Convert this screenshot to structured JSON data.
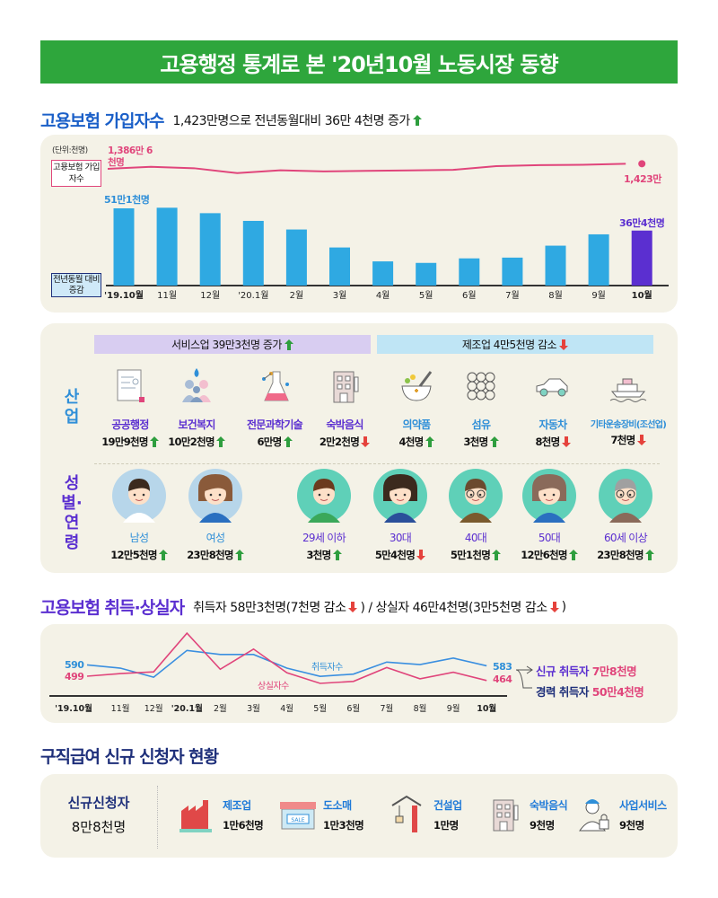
{
  "banner": {
    "title": "고용행정 통계로 본 '20년10월 노동시장 동향",
    "color": "#2ea63c"
  },
  "colors": {
    "up": "#2e9e3e",
    "down": "#e5423c",
    "pink": "#e0457b",
    "blue": "#2f9fe0",
    "purple": "#5b2fd0",
    "navy": "#1e2f7a"
  },
  "section1": {
    "title": "고용보험 가입자수",
    "summary": "1,423만명으로 전년동월대비 36만 4천명 증가",
    "summary_arrow": "up",
    "unit": "(단위:천명)",
    "line_legend": "고용보험 가입자수",
    "bar_legend": "전년동월 대비 증감",
    "line_start_label": "1,386만 6천명",
    "line_end_label": "1,423만",
    "bar_first_label": "51만1천명",
    "bar_last_label": "36만4천명"
  },
  "section2": {
    "industry_label": "산업",
    "demo_label": "성별·연령",
    "service_header": "서비스업 39만3천명 증가",
    "service_arrow": "up",
    "manufacturing_header": "제조업 4만5천명 감소",
    "manufacturing_arrow": "down",
    "industries": [
      {
        "name": "공공행정",
        "value": "19만9천명",
        "arrow": "up",
        "icon": "document-icon"
      },
      {
        "name": "보건복지",
        "value": "10만2천명",
        "arrow": "up",
        "icon": "people-care-icon"
      },
      {
        "name": "전문과학기술",
        "value": "6만명",
        "arrow": "up",
        "icon": "flask-icon"
      },
      {
        "name": "숙박음식",
        "value": "2만2천명",
        "arrow": "down",
        "icon": "hotel-icon"
      },
      {
        "name": "의약품",
        "value": "4천명",
        "arrow": "up",
        "icon": "mortar-pestle-icon"
      },
      {
        "name": "섬유",
        "value": "3천명",
        "arrow": "up",
        "icon": "fabric-icon"
      },
      {
        "name": "자동차",
        "value": "8천명",
        "arrow": "down",
        "icon": "car-icon"
      },
      {
        "name": "기타운송장비(조선업)",
        "value": "7천명",
        "arrow": "down",
        "icon": "ship-icon"
      }
    ],
    "demographics": [
      {
        "name": "남성",
        "value": "12만5천명",
        "arrow": "up",
        "icon": "man-avatar-icon"
      },
      {
        "name": "여성",
        "value": "23만8천명",
        "arrow": "up",
        "icon": "woman-avatar-icon"
      },
      {
        "name": "29세 이하",
        "value": "3천명",
        "arrow": "up",
        "icon": "young-man-avatar-icon"
      },
      {
        "name": "30대",
        "value": "5만4천명",
        "arrow": "down",
        "icon": "young-woman-avatar-icon"
      },
      {
        "name": "40대",
        "value": "5만1천명",
        "arrow": "up",
        "icon": "glasses-man-avatar-icon"
      },
      {
        "name": "50대",
        "value": "12만6천명",
        "arrow": "up",
        "icon": "middle-aged-woman-avatar-icon"
      },
      {
        "name": "60세 이상",
        "value": "23만8천명",
        "arrow": "up",
        "icon": "elderly-avatar-icon"
      }
    ]
  },
  "section3": {
    "title": "고용보험 취득·상실자",
    "summary_a": "취득자 58만3천명(7천명 감소",
    "summary_a_arrow": "down",
    "summary_b": ") / 상실자 46만4천명(3만5천명 감소",
    "summary_b_arrow": "down",
    "summary_end": ")",
    "acq_label": "취득자수",
    "loss_label": "상실자수",
    "acq_first": "590",
    "acq_last": "583",
    "loss_first": "499",
    "loss_last": "464",
    "new_label": "신규 취득자",
    "new_value": "7만8천명",
    "career_label": "경력 취득자",
    "career_value": "50만4천명"
  },
  "section4": {
    "title": "구직급여 신규 신청자 현황",
    "total_label": "신규신청자",
    "total_value": "8만8천명",
    "items": [
      {
        "name": "제조업",
        "value": "1만6천명",
        "icon": "factory-icon"
      },
      {
        "name": "도소매",
        "value": "1만3천명",
        "icon": "store-icon",
        "sign": "SALE"
      },
      {
        "name": "건설업",
        "value": "1만명",
        "icon": "crane-icon"
      },
      {
        "name": "숙박음식",
        "value": "9천명",
        "icon": "hotel-icon"
      },
      {
        "name": "사업서비스",
        "value": "9천명",
        "icon": "security-guard-icon"
      }
    ]
  },
  "chart_data": [
    {
      "type": "bar",
      "title": "고용보험 가입자수",
      "categories": [
        "'19.10월",
        "11월",
        "12월",
        "'20.1월",
        "2월",
        "3월",
        "4월",
        "5월",
        "6월",
        "7월",
        "8월",
        "9월",
        "10월"
      ],
      "series": [
        {
          "name": "전년동월 대비 증감",
          "unit": "천명",
          "values": [
            511,
            515,
            479,
            428,
            371,
            252,
            160,
            150,
            180,
            185,
            264,
            339,
            364
          ]
        },
        {
          "name": "고용보험 가입자수",
          "type": "line",
          "unit": "만명",
          "values": [
            1386.6,
            1401,
            1391,
            1356,
            1376,
            1368,
            1372,
            1375,
            1379,
            1406,
            1413,
            1416,
            1423
          ]
        }
      ],
      "highlight_color": "#5b2fd0",
      "bar_color": "#2fa9e2",
      "grid": false
    },
    {
      "type": "line",
      "title": "고용보험 취득·상실자",
      "categories": [
        "'19.10월",
        "11월",
        "12월",
        "'20.1월",
        "2월",
        "3월",
        "4월",
        "5월",
        "6월",
        "7월",
        "8월",
        "9월",
        "10월"
      ],
      "series": [
        {
          "name": "취득자수",
          "color": "#3a8fe0",
          "values": [
            590,
            564,
            491,
            707,
            674,
            674,
            564,
            498,
            516,
            613,
            593,
            645,
            583
          ]
        },
        {
          "name": "상실자수",
          "color": "#e0457b",
          "values": [
            499,
            520,
            534,
            846,
            555,
            718,
            527,
            441,
            457,
            569,
            478,
            531,
            464
          ]
        }
      ],
      "grid": false
    }
  ]
}
